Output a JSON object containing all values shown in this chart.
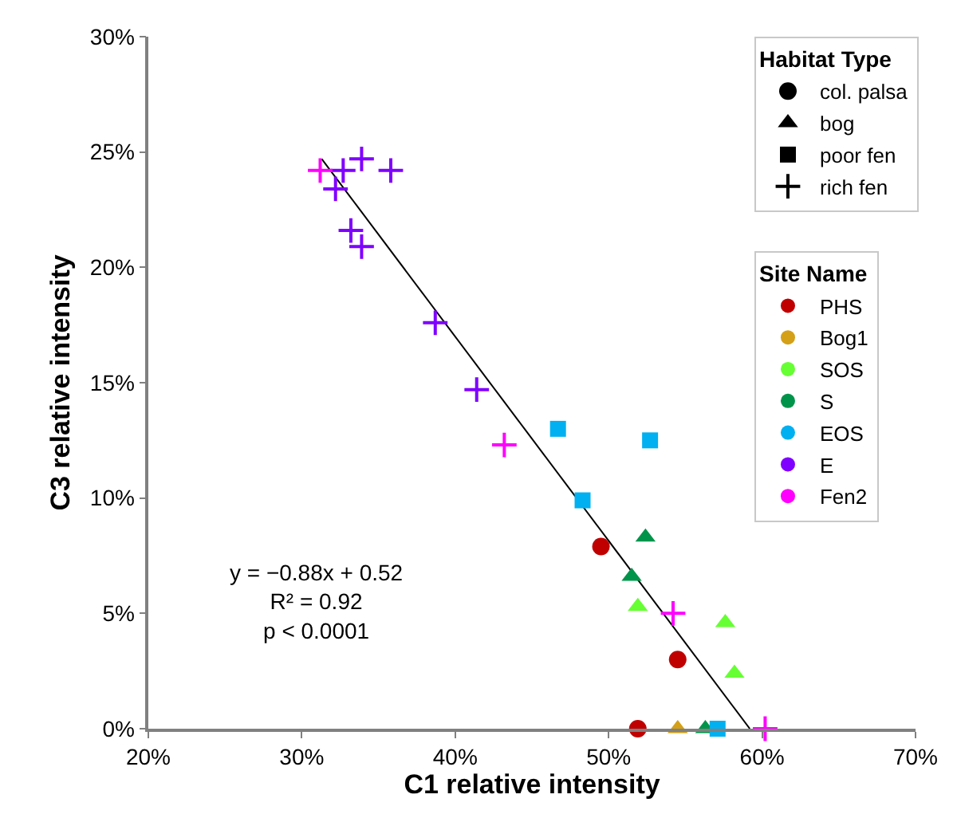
{
  "chart_data": {
    "type": "scatter",
    "xlabel": "C1 relative intensity",
    "ylabel": "C3 relative intensity",
    "xlim": [
      20,
      70
    ],
    "xticks": [
      {
        "value": 20,
        "label": "20%"
      },
      {
        "value": 30,
        "label": "30%"
      },
      {
        "value": 40,
        "label": "40%"
      },
      {
        "value": 50,
        "label": "50%"
      },
      {
        "value": 60,
        "label": "60%"
      },
      {
        "value": 70,
        "label": "70%"
      }
    ],
    "ylim": [
      0,
      30
    ],
    "yticks": [
      {
        "value": 0,
        "label": "0%"
      },
      {
        "value": 5,
        "label": "5%"
      },
      {
        "value": 10,
        "label": "10%"
      },
      {
        "value": 15,
        "label": "15%"
      },
      {
        "value": 20,
        "label": "20%"
      },
      {
        "value": 25,
        "label": "25%"
      },
      {
        "value": 30,
        "label": "30%"
      }
    ],
    "grid": false,
    "legend": "top right",
    "legend_title": [
      "Habitat Type",
      "Site Name"
    ],
    "annotations": [
      "y = −0.88x + 0.52",
      "R² = 0.92",
      "p < 0.0001"
    ],
    "series": [
      {
        "name": "col. palsa",
        "color": "#000000",
        "marker": "circle"
      },
      {
        "name": "bog",
        "color": "#000000",
        "marker": "triangle"
      },
      {
        "name": "poor fen",
        "color": "#000000",
        "marker": "square"
      },
      {
        "name": "rich fen",
        "color": "#000000",
        "marker": "cross"
      },
      {
        "name": "PHS",
        "color": "#c00000",
        "marker": "circle",
        "x": [
          49.5,
          54.5,
          51.9
        ],
        "values": [
          7.9,
          3.0,
          0
        ]
      },
      {
        "name": "Bog1",
        "color": "#d4a017",
        "marker": "triangle",
        "x": [
          54.5
        ],
        "values": [
          0
        ]
      },
      {
        "name": "SOS",
        "color": "#66ff33",
        "marker": "triangle",
        "x": [
          51.9,
          57.6,
          58.2
        ],
        "values": [
          5.3,
          4.6,
          2.4
        ]
      },
      {
        "name": "S",
        "color": "#00944a",
        "marker": "triangle",
        "x": [
          52.4,
          51.5,
          56.3
        ],
        "values": [
          8.3,
          6.6,
          0
        ]
      },
      {
        "name": "EOS",
        "color": "#00b0f0",
        "marker": "square",
        "x": [
          46.7,
          52.7,
          48.3,
          57.1
        ],
        "values": [
          13.0,
          12.5,
          9.9,
          0
        ]
      },
      {
        "name": "E",
        "color": "#7f00ff",
        "marker": "cross",
        "x": [
          32.7,
          33.9,
          35.8,
          32.2,
          33.2,
          33.9,
          38.7,
          41.4
        ],
        "values": [
          24.2,
          24.7,
          24.2,
          23.4,
          21.6,
          20.9,
          17.6,
          14.7
        ]
      },
      {
        "name": "Fen2",
        "color": "#ff00ff",
        "marker": "cross",
        "x": [
          31.2,
          43.2,
          54.2,
          60.2
        ],
        "values": [
          24.2,
          12.3,
          5.0,
          0
        ]
      },
      {
        "type": "line",
        "color": "#000000",
        "marker": "none",
        "x": [
          31.3,
          59.2
        ],
        "values": [
          24.7,
          0
        ]
      }
    ]
  }
}
